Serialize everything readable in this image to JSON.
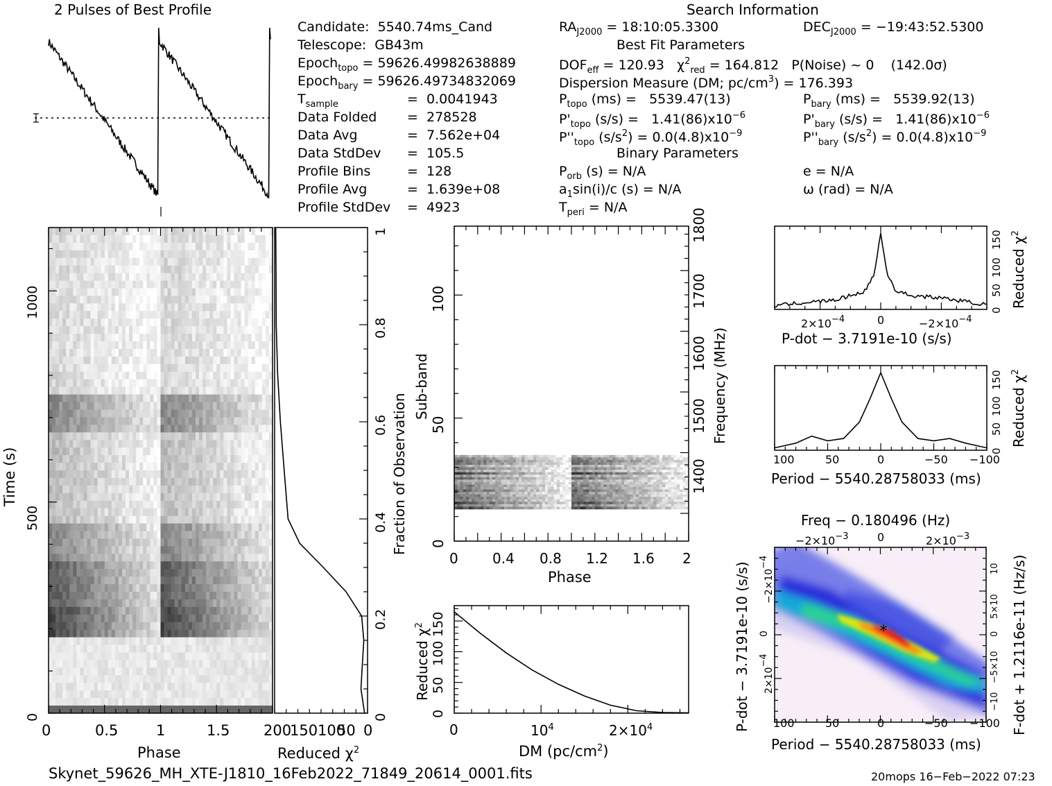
{
  "profile_title": "2 Pulses of Best Profile",
  "search_title": "Search Information",
  "info_left": [
    {
      "label": "Candidate:  5540.74ms_Cand"
    },
    {
      "label": "Telescope:  GB43m"
    },
    {
      "label": "Epoch",
      "sub": "topo",
      "rest": " = 59626.49982638889"
    },
    {
      "label": "Epoch",
      "sub": "bary",
      "rest": " = 59626.49734832069"
    },
    {
      "label": "T",
      "sub": "sample",
      "rest": "",
      "eq": "=  0.0041943"
    },
    {
      "label": "Data Folded",
      "eq": "=  278528"
    },
    {
      "label": "Data Avg",
      "eq": "=  7.562e+04"
    },
    {
      "label": "Data StdDev",
      "eq": "=  105.5"
    },
    {
      "label": "Profile Bins",
      "eq": "=  128"
    },
    {
      "label": "Profile Avg",
      "eq": "=  1.639e+08"
    },
    {
      "label": "Profile StdDev",
      "eq": "=  4923"
    }
  ],
  "search_info": {
    "ra": "RA",
    "ra_sub": "J2000",
    "ra_val": " = 18:10:05.3300",
    "dec": "DEC",
    "dec_sub": "J2000",
    "dec_val": " = −19:43:52.5300",
    "best_fit": "Best Fit Parameters",
    "dof": "DOF",
    "dof_sub": "eff",
    "dof_val": " = 120.93   χ",
    "chi_sub": "red",
    "chi_val": " = 164.812   P(Noise) ~ 0    (142.0σ)",
    "dm_line": "Dispersion Measure (DM; pc/cm",
    "dm_val": ") = 176.393",
    "ptopo": "P",
    "ptopo_sub": "topo",
    "ptopo_val": " (ms) =   5539.47(13)",
    "pbary": "P",
    "pbary_sub": "bary",
    "pbary_val": " (ms) =   5539.92(13)",
    "pdtopo": "P'",
    "pdtopo_sub": "topo",
    "pdtopo_val": " (s/s) =   1.41(86)x10",
    "pdbary": "P'",
    "pdbary_sub": "bary",
    "pdbary_val": " (s/s) =   1.41(86)x10",
    "pddtopo": "P''",
    "pddtopo_sub": "topo",
    "pddtopo_val": " (s/s",
    "pddtopo_val2": ") = 0.0(4.8)x10",
    "pddbary": "P''",
    "pddbary_sub": "bary",
    "pddbary_val": " (s/s",
    "pddbary_val2": ") = 0.0(4.8)x10",
    "exp6": "−6",
    "exp9": "−9",
    "exp2": "2",
    "exp3": "3",
    "binary": "Binary Parameters",
    "porb": "P",
    "porb_sub": "orb",
    "porb_val": " (s) = N/A",
    "a1": "a",
    "a1_sub": "1",
    "a1_val": "sin(i)/c (s) = N/A",
    "tperi": "T",
    "tperi_sub": "peri",
    "tperi_val": " = N/A",
    "e": "e = N/A",
    "omega": "ω (rad) = N/A"
  },
  "chart_data": [
    {
      "type": "line",
      "title": "2 Pulses of Best Profile",
      "x": [
        0,
        0.25,
        0.5,
        0.75,
        0.98,
        1.0,
        1.25,
        1.5,
        1.75,
        1.98,
        2.0
      ],
      "values": [
        0.92,
        0.72,
        0.52,
        0.32,
        0.02,
        1.0,
        0.72,
        0.52,
        0.32,
        0.02,
        1.0
      ]
    },
    {
      "type": "heatmap",
      "xlabel": "Phase",
      "ylabel": "Time (s)",
      "xticks": [
        "0",
        "0.5",
        "1",
        "1.5",
        "2"
      ],
      "yticks": [
        "0",
        "500",
        "1000"
      ],
      "xlim": [
        0,
        2
      ],
      "ylim": [
        0,
        1150
      ]
    },
    {
      "type": "line",
      "xlabel": "Reduced χ",
      "y2label": "Fraction of Observation",
      "xticks": [
        "200",
        "150",
        "100",
        "50",
        "0"
      ],
      "yticks": [
        "0",
        "0.2",
        "0.4",
        "0.6",
        "0.8",
        "1"
      ],
      "x": [
        0,
        0.05,
        0.1,
        0.15,
        0.2,
        0.25,
        0.3,
        0.35,
        0.4,
        0.5,
        0.6,
        0.7,
        0.8,
        0.9,
        1.0
      ],
      "values": [
        5,
        15,
        12,
        8,
        12,
        45,
        95,
        145,
        170,
        180,
        188,
        194,
        197,
        198,
        197
      ]
    },
    {
      "type": "heatmap",
      "xlabel": "Phase",
      "ylabel": "Sub-band",
      "y2label": "Frequency (MHz)",
      "xticks": [
        "0",
        "0.4",
        "0.8",
        "1.2",
        "1.6",
        "2"
      ],
      "yticks": [
        "0",
        "50",
        "100"
      ],
      "y2ticks": [
        "1400",
        "1500",
        "1600",
        "1700",
        "1800"
      ],
      "xlim": [
        0,
        2
      ],
      "ylim": [
        0,
        128
      ]
    },
    {
      "type": "line",
      "xlabel": "DM (pc/cm",
      "ylabel": "Reduced χ",
      "xticks": [
        "0",
        "10",
        "2×10"
      ],
      "yticks": [
        "0",
        "50",
        "100",
        "150"
      ],
      "x": [
        0,
        3000,
        6000,
        9000,
        12000,
        15000,
        18000,
        21000,
        24000,
        27000
      ],
      "values": [
        165,
        130,
        98,
        70,
        47,
        28,
        13,
        4,
        1,
        0.5
      ]
    },
    {
      "type": "line",
      "xlabel": "P-dot − 3.7191e-10 (s/s)",
      "ylabel": "Reduced χ",
      "xticks": [
        "2×10",
        "0",
        "−2×10"
      ],
      "yticks": [
        "0",
        "50",
        "100",
        "150"
      ],
      "x": [
        0.00035,
        0.00025,
        0.00015,
        0.0001,
        5e-05,
        2e-05,
        0,
        -2e-05,
        -5e-05,
        -0.0001,
        -0.0002,
        -0.0003,
        -0.00035
      ],
      "values": [
        8,
        15,
        20,
        30,
        40,
        80,
        165,
        80,
        40,
        30,
        25,
        15,
        10
      ]
    },
    {
      "type": "line",
      "xlabel": "Period − 5540.28758033 (ms)",
      "ylabel": "Reduced χ",
      "xticks": [
        "100",
        "50",
        "0",
        "−50",
        "−100"
      ],
      "yticks": [
        "0",
        "50",
        "100",
        "150"
      ],
      "x": [
        100,
        80,
        65,
        50,
        35,
        20,
        10,
        0,
        -10,
        -20,
        -35,
        -50,
        -65,
        -80,
        -100
      ],
      "values": [
        5,
        15,
        30,
        20,
        25,
        60,
        110,
        165,
        110,
        60,
        25,
        20,
        25,
        15,
        5
      ]
    },
    {
      "type": "heatmap",
      "title": "Freq − 0.180496 (Hz)",
      "xlabel": "Period − 5540.28758033 (ms)",
      "ylabel": "P-dot − 3.7191e-10 (s/s)",
      "y2label": "F-dot + 1.2116e-11 (Hz/s)",
      "xticks": [
        "100",
        "50",
        "0",
        "−50",
        "−100"
      ],
      "x2ticks": [
        "−2×10",
        "0",
        "2×10"
      ],
      "yticks": [
        "2×10",
        "0",
        "−2×10"
      ],
      "y2ticks": [
        "−10",
        "−5×10",
        "0",
        "5×10",
        "10"
      ]
    }
  ],
  "labels": {
    "phase": "Phase",
    "time": "Time (s)",
    "reduced_chi": "Reduced χ",
    "chi_sup": "2",
    "fraction": "Fraction of Observation",
    "subband": "Sub-band",
    "frequency": "Frequency (MHz)",
    "dm": "DM (pc/cm",
    "dm_close": ")",
    "pdot_axis": "P-dot − 3.7191e-10 (s/s)",
    "period_axis": "Period − 5540.28758033 (ms)",
    "freq_axis": "Freq − 0.180496 (Hz)",
    "fdot_axis": "F-dot + 1.2116e-11 (Hz/s)",
    "ten": "10",
    "e4": "4",
    "twox": "2×10",
    "m4": "−4",
    "m3": "−3"
  },
  "footer": {
    "filename": "Skynet_59626_MH_XTE-J1810_16Feb2022_71849_20614_0001.fits",
    "stamp": "20mops 16−Feb−2022 07:23"
  }
}
